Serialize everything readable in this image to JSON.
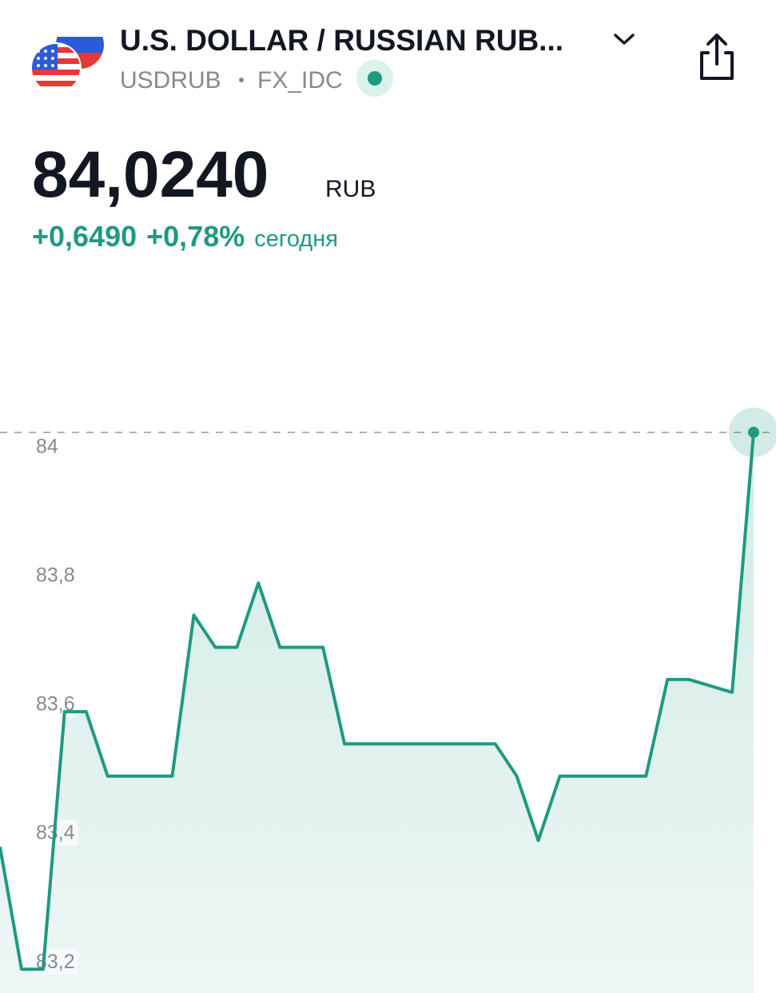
{
  "header": {
    "title": "U.S. DOLLAR / RUSSIAN RUB...",
    "symbol": "USDRUB",
    "exchange": "FX_IDC",
    "price": "84,0240",
    "currency": "RUB",
    "change": "+0,6490",
    "change_percent": "+0,78%",
    "period": "сегодня"
  },
  "chart_data": {
    "type": "area",
    "color": "#1e9a80",
    "values": [
      83.38,
      83.19,
      83.19,
      83.59,
      83.59,
      83.49,
      83.49,
      83.49,
      83.49,
      83.74,
      83.69,
      83.69,
      83.79,
      83.69,
      83.69,
      83.69,
      83.54,
      83.54,
      83.54,
      83.54,
      83.54,
      83.54,
      83.54,
      83.54,
      83.49,
      83.39,
      83.49,
      83.49,
      83.49,
      83.49,
      83.49,
      83.64,
      83.64,
      83.63,
      83.62,
      84.024
    ],
    "ylim": [
      83.153,
      84.1
    ],
    "yticks": [
      84,
      {
        "value": 83.8,
        "label": "83,8"
      },
      {
        "value": 83.6,
        "label": "83,6"
      },
      {
        "value": 83.4,
        "label": "83,4"
      },
      {
        "value": 83.2,
        "label": "83,2"
      }
    ]
  }
}
